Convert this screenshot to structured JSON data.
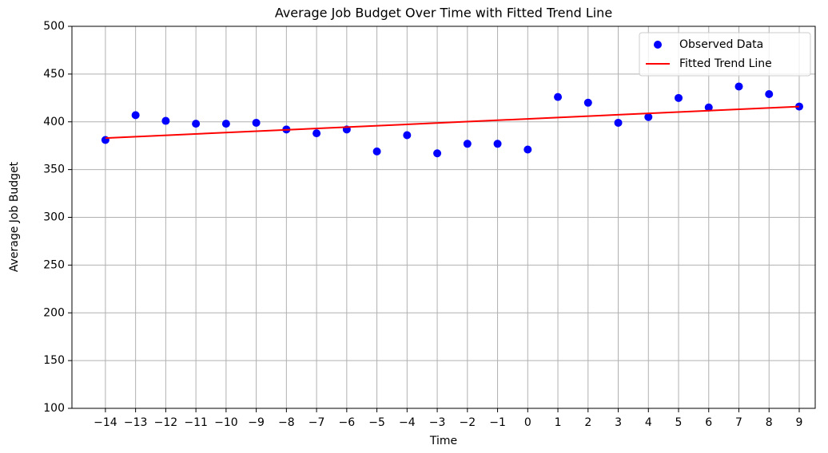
{
  "chart_data": {
    "type": "scatter",
    "title": "Average Job Budget Over Time with Fitted Trend Line",
    "xlabel": "Time",
    "ylabel": "Average Job Budget",
    "xlim": [
      -15.11,
      9.53
    ],
    "ylim": [
      100,
      500
    ],
    "xticks": [
      {
        "value": -14,
        "label": "−14"
      },
      {
        "value": -13,
        "label": "−13"
      },
      {
        "value": -12,
        "label": "−12"
      },
      {
        "value": -11,
        "label": "−11"
      },
      {
        "value": -10,
        "label": "−10"
      },
      {
        "value": -9,
        "label": "−9"
      },
      {
        "value": -8,
        "label": "−8"
      },
      {
        "value": -7,
        "label": "−7"
      },
      {
        "value": -6,
        "label": "−6"
      },
      {
        "value": -5,
        "label": "−5"
      },
      {
        "value": -4,
        "label": "−4"
      },
      {
        "value": -3,
        "label": "−3"
      },
      {
        "value": -2,
        "label": "−2"
      },
      {
        "value": -1,
        "label": "−1"
      },
      0,
      1,
      2,
      3,
      4,
      5,
      6,
      7,
      8,
      9
    ],
    "yticks": [
      100,
      150,
      200,
      250,
      300,
      350,
      400,
      450,
      500
    ],
    "grid": true,
    "legend": "upper right",
    "series": [
      {
        "name": "Observed Data",
        "color": "#0000ff",
        "kind": "scatter",
        "x": [
          -14,
          -13,
          -12,
          -11,
          -10,
          -9,
          -8,
          -7,
          -6,
          -5,
          -4,
          -3,
          -2,
          -1,
          0,
          1,
          2,
          3,
          4,
          5,
          6,
          7,
          8,
          9
        ],
        "values": [
          381,
          407,
          401,
          398,
          398,
          399,
          392,
          388,
          392,
          369,
          386,
          367,
          377,
          377,
          371,
          426,
          420,
          399,
          405,
          425,
          415,
          437,
          429,
          416
        ]
      },
      {
        "name": "Fitted Trend Line",
        "color": "#ff0000",
        "kind": "line",
        "x": [
          -14,
          9
        ],
        "values": [
          383,
          416
        ]
      }
    ]
  }
}
